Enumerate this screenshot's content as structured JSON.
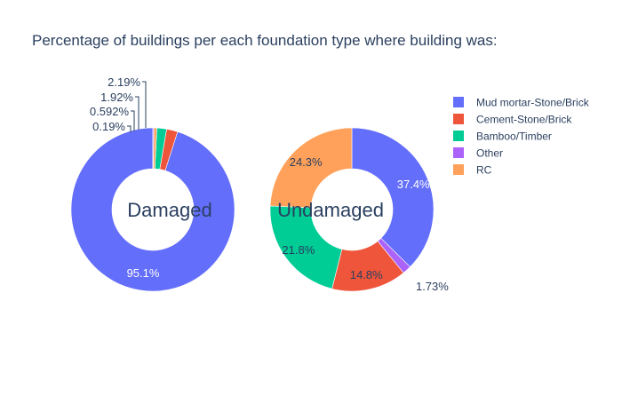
{
  "chart_data": {
    "type": "pie",
    "title": "Percentage of buildings per each foundation type where building was:",
    "categories": [
      "Mud mortar-Stone/Brick",
      "Cement-Stone/Brick",
      "Bamboo/Timber",
      "Other",
      "RC"
    ],
    "colors": [
      "#636efa",
      "#EF553B",
      "#00cc96",
      "#ab63fa",
      "#FFA15A"
    ],
    "hole": 0.5,
    "legend_position": "top-right",
    "series": [
      {
        "name": "Damaged",
        "values": [
          95.1,
          2.19,
          1.92,
          0.19,
          0.592
        ],
        "labels": [
          "95.1%",
          "2.19%",
          "1.92%",
          "0.19%",
          "0.592%"
        ]
      },
      {
        "name": "Undamaged",
        "values": [
          37.4,
          14.8,
          21.8,
          1.73,
          24.3
        ],
        "labels": [
          "37.4%",
          "14.8%",
          "21.8%",
          "1.73%",
          "24.3%"
        ]
      }
    ]
  }
}
